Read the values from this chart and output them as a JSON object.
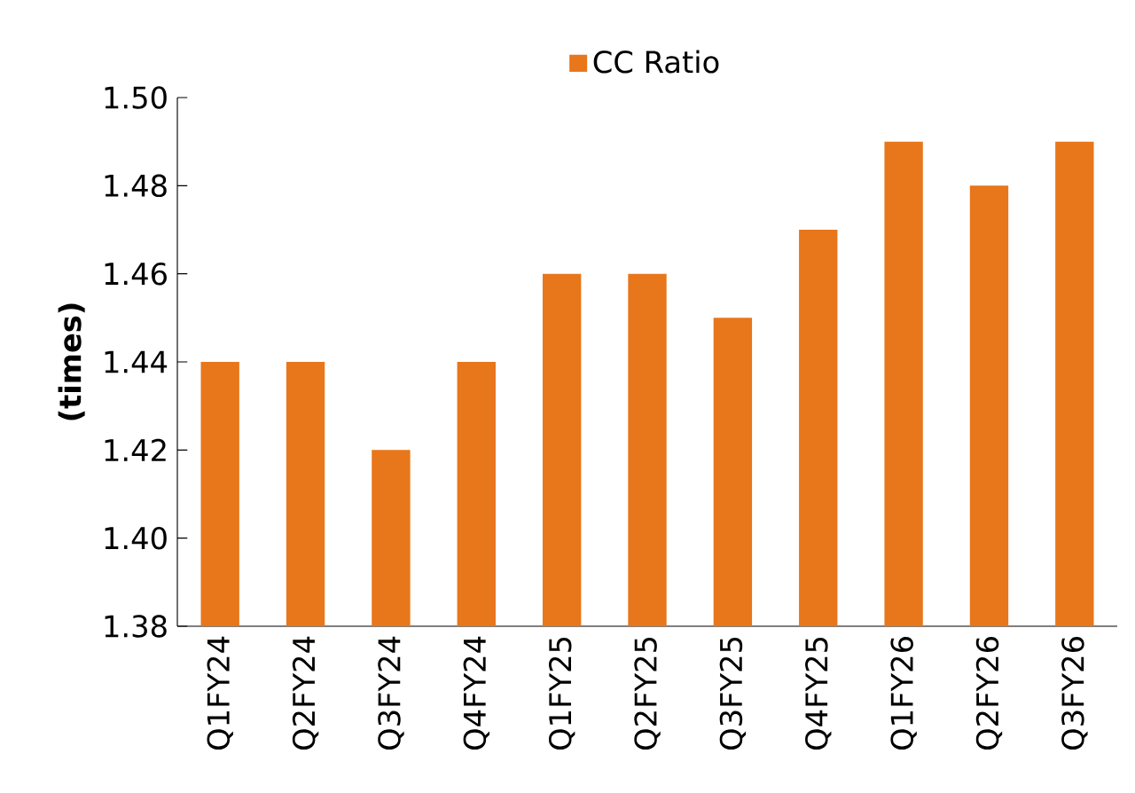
{
  "chart_data": {
    "type": "bar",
    "ylabel": "(times)",
    "categories": [
      "Q1FY24",
      "Q2FY24",
      "Q3FY24",
      "Q4FY24",
      "Q1FY25",
      "Q2FY25",
      "Q3FY25",
      "Q4FY25",
      "Q1FY26",
      "Q2FY26",
      "Q3FY26"
    ],
    "series": [
      {
        "name": "CC Ratio",
        "color": "#e8761a",
        "values": [
          1.44,
          1.44,
          1.42,
          1.44,
          1.46,
          1.46,
          1.45,
          1.47,
          1.49,
          1.48,
          1.49
        ]
      }
    ],
    "ylim": [
      1.38,
      1.5
    ],
    "yticks": [
      {
        "value": 1.38,
        "label": "1.38"
      },
      {
        "value": 1.4,
        "label": "1.40"
      },
      {
        "value": 1.42,
        "label": "1.42"
      },
      {
        "value": 1.44,
        "label": "1.44"
      },
      {
        "value": 1.46,
        "label": "1.46"
      },
      {
        "value": 1.48,
        "label": "1.48"
      },
      {
        "value": 1.5,
        "label": "1.50"
      }
    ],
    "legend": "top"
  }
}
